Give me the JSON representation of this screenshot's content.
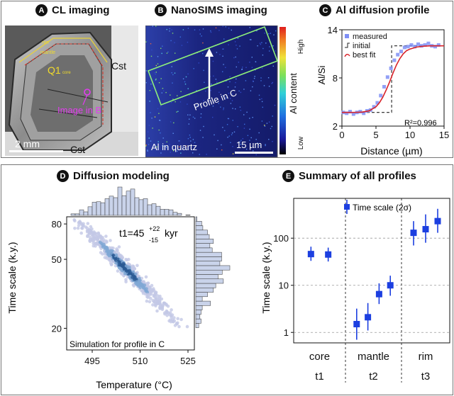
{
  "panels": {
    "a": {
      "letter": "A",
      "title": "CL imaging",
      "labels": {
        "rim": "rim",
        "mantle": "mantle",
        "q1": "Q1",
        "core_sub": "core",
        "image_in_b": "Image in B",
        "cst_top": "Cst",
        "cst_bottom": "Cst",
        "scale": "2 mm"
      },
      "colors": {
        "rim_line": "#e8d13a",
        "mantle_line": "#d63a2e",
        "marker": "#e23cf0",
        "text_yellow": "#f2dc2a"
      }
    },
    "b": {
      "letter": "B",
      "title": "NanoSIMS imaging",
      "labels": {
        "profile": "Profile in C",
        "mineral": "Al in quartz",
        "scale": "15 µm",
        "colorbar_high": "High",
        "colorbar_low": "Low",
        "colorbar_label": "Al content"
      },
      "colors": {
        "rect": "#8ef07a",
        "background": "#1f2a8f"
      }
    },
    "c": {
      "letter": "C",
      "title": "Al diffusion profile",
      "chart_data": {
        "type": "scatter",
        "xlabel": "Distance (µm)",
        "ylabel": "Al/Si",
        "xlim": [
          0,
          15
        ],
        "ylim": [
          2,
          14
        ],
        "xticks": [
          0,
          5,
          10,
          15
        ],
        "yticks": [
          2,
          8,
          14
        ],
        "legend_position": "top-left",
        "legend": [
          "measured",
          "initial",
          "best fit"
        ],
        "r2": "R²=0.996",
        "initial_profile": {
          "x": [
            0,
            7.3,
            7.3,
            15
          ],
          "y": [
            3.7,
            3.7,
            12.0,
            12.0
          ]
        },
        "series": [
          {
            "name": "measured",
            "color": "#7f8ff5",
            "x": [
              0.2,
              0.7,
              1.2,
              1.7,
              2.2,
              2.7,
              3.2,
              3.7,
              4.2,
              4.7,
              5.2,
              5.7,
              6.2,
              6.7,
              7.2,
              7.7,
              8.2,
              8.7,
              9.2,
              9.7,
              10.2,
              10.7,
              11.2,
              11.7,
              12.2,
              12.7,
              13.2,
              13.7,
              14.2
            ],
            "y": [
              3.7,
              3.6,
              3.8,
              3.5,
              3.7,
              3.8,
              3.6,
              3.9,
              4.0,
              4.4,
              4.9,
              5.8,
              6.9,
              8.1,
              9.2,
              10.2,
              10.9,
              11.3,
              11.8,
              11.9,
              12.1,
              11.9,
              12.2,
              12.0,
              12.1,
              12.3,
              12.0,
              11.9,
              12.1
            ]
          },
          {
            "name": "best fit",
            "color": "#d8232a",
            "x": [
              0,
              1,
              2,
              3,
              4,
              5,
              5.5,
              6,
              6.5,
              7,
              7.5,
              8,
              8.5,
              9,
              9.5,
              10,
              11,
              12,
              13,
              14,
              15
            ],
            "y": [
              3.7,
              3.7,
              3.71,
              3.75,
              3.9,
              4.4,
              4.9,
              5.6,
              6.5,
              7.5,
              8.6,
              9.6,
              10.4,
              11.0,
              11.4,
              11.6,
              11.85,
              11.95,
              12.0,
              12.0,
              12.0
            ]
          }
        ]
      }
    },
    "d": {
      "letter": "D",
      "title": "Diffusion modeling",
      "annotation_main": "t1=45",
      "annotation_sup": "+22",
      "annotation_sub": "-15",
      "annotation_unit": "kyr",
      "simulation_label": "Simulation for profile in C",
      "chart_data": {
        "type": "scatter",
        "xlabel": "Temperature (°C)",
        "ylabel": "Time scale (k.y.)",
        "xlim": [
          487,
          527
        ],
        "ylim": [
          15,
          88
        ],
        "xticks": [
          495,
          510,
          525
        ],
        "yticks": [
          20,
          50,
          80
        ],
        "y_scale": "log",
        "colors": {
          "outer": "#c3c8e6",
          "mid": "#7fa7d5",
          "core": "#2a5a94",
          "hist_fill": "#c9d3ea"
        },
        "cloud": {
          "center_temperature": 505,
          "center_time": 45,
          "temperature_to": 520,
          "time_to": 24
        }
      }
    },
    "e": {
      "letter": "E",
      "title": "Summary of all profiles",
      "legend": "Time scale (2σ)",
      "chart_data": {
        "type": "scatter",
        "ylabel": "Time scale (k.y.)",
        "y_scale": "log",
        "ylim": [
          0.6,
          700
        ],
        "yticks": [
          1,
          10,
          100
        ],
        "zones": [
          {
            "name": "core",
            "stage": "t1"
          },
          {
            "name": "mantle",
            "stage": "t2"
          },
          {
            "name": "rim",
            "stage": "t3"
          }
        ],
        "series": [
          {
            "name": "Time scale (2σ)",
            "color": "#1c3fe0",
            "points": [
              {
                "zone": "core",
                "value": 46,
                "low": 33,
                "high": 66
              },
              {
                "zone": "core",
                "value": 45,
                "low": 32,
                "high": 63
              },
              {
                "zone": "mantle",
                "value": 1.5,
                "low": 0.7,
                "high": 3.2
              },
              {
                "zone": "mantle",
                "value": 2.1,
                "low": 1.1,
                "high": 4.2
              },
              {
                "zone": "mantle",
                "value": 6.5,
                "low": 4.0,
                "high": 11
              },
              {
                "zone": "mantle",
                "value": 10,
                "low": 6.0,
                "high": 16
              },
              {
                "zone": "rim",
                "value": 130,
                "low": 70,
                "high": 230
              },
              {
                "zone": "rim",
                "value": 155,
                "low": 80,
                "high": 320
              },
              {
                "zone": "rim",
                "value": 230,
                "low": 130,
                "high": 420
              }
            ]
          }
        ]
      }
    }
  }
}
